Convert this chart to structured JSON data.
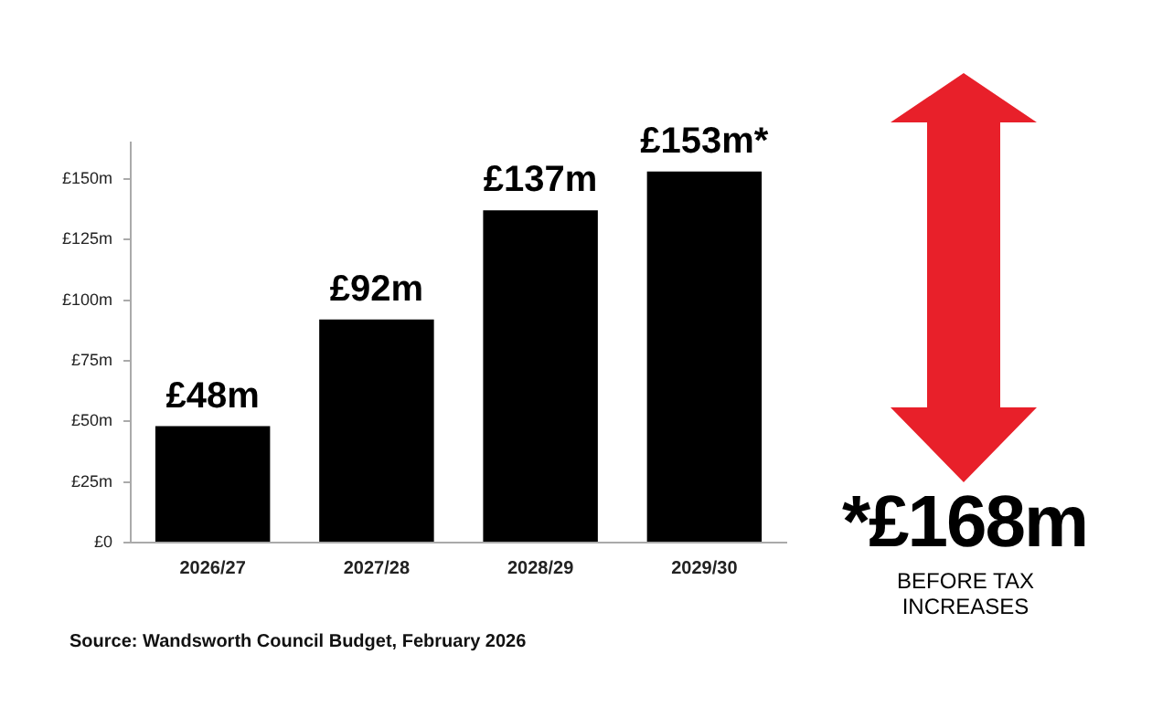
{
  "chart_data": {
    "type": "bar",
    "categories": [
      "2026/27",
      "2027/28",
      "2028/29",
      "2029/30"
    ],
    "values": [
      48,
      92,
      137,
      153
    ],
    "color": "#000000",
    "value_labels": [
      "£48m",
      "£92m",
      "£137m",
      "£153m*"
    ],
    "ylim": [
      0,
      165
    ],
    "yticks": [
      {
        "value": 0,
        "label": "£0"
      },
      {
        "value": 25,
        "label": "£25m"
      },
      {
        "value": 50,
        "label": "£50m"
      },
      {
        "value": 75,
        "label": "£75m"
      },
      {
        "value": 100,
        "label": "£100m"
      },
      {
        "value": 125,
        "label": "£125m"
      },
      {
        "value": 150,
        "label": "£150m"
      }
    ],
    "grid": false,
    "legend": false,
    "annotations": [
      "*£168m",
      "BEFORE TAX INCREASES",
      "Source: Wandsworth Council Budget, February 2026"
    ]
  }
}
